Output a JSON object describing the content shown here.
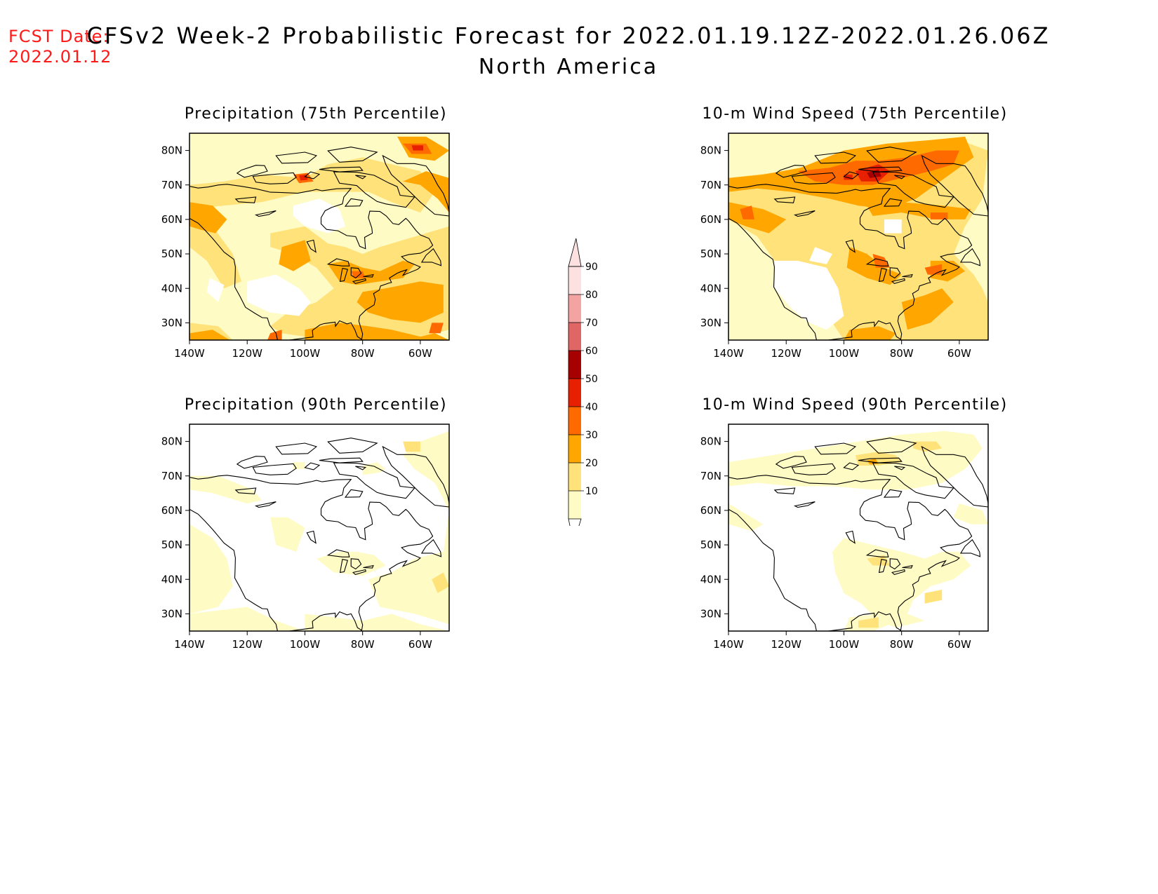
{
  "header": {
    "fcst_label": "FCST Date:",
    "fcst_date": "2022.01.12",
    "title": "CFSv2 Week-2 Probabilistic Forecast for 2022.01.19.12Z-2022.01.26.06Z",
    "subtitle": "North America"
  },
  "colors": {
    "c10": "#fffbc4",
    "c20": "#ffe27a",
    "c30": "#ffa600",
    "c40": "#ff6a00",
    "c50": "#e62000",
    "c60": "#a60000",
    "c70": "#e06666",
    "c80": "#f4a3a3",
    "c90": "#fde1e1"
  },
  "colorbar": {
    "levels": [
      "10",
      "20",
      "30",
      "40",
      "50",
      "60",
      "70",
      "80",
      "90"
    ]
  },
  "axes": {
    "lon_ticks": [
      "140W",
      "120W",
      "100W",
      "80W",
      "60W"
    ],
    "lat_ticks": [
      "80N",
      "70N",
      "60N",
      "50N",
      "40N",
      "30N"
    ]
  },
  "panels": [
    {
      "id": "precip75",
      "title": "Precipitation (75th Percentile)"
    },
    {
      "id": "wind75",
      "title": "10-m Wind Speed (75th Percentile)"
    },
    {
      "id": "precip90",
      "title": "Precipitation (90th Percentile)"
    },
    {
      "id": "wind90",
      "title": "10-m Wind Speed (90th Percentile)"
    }
  ]
}
